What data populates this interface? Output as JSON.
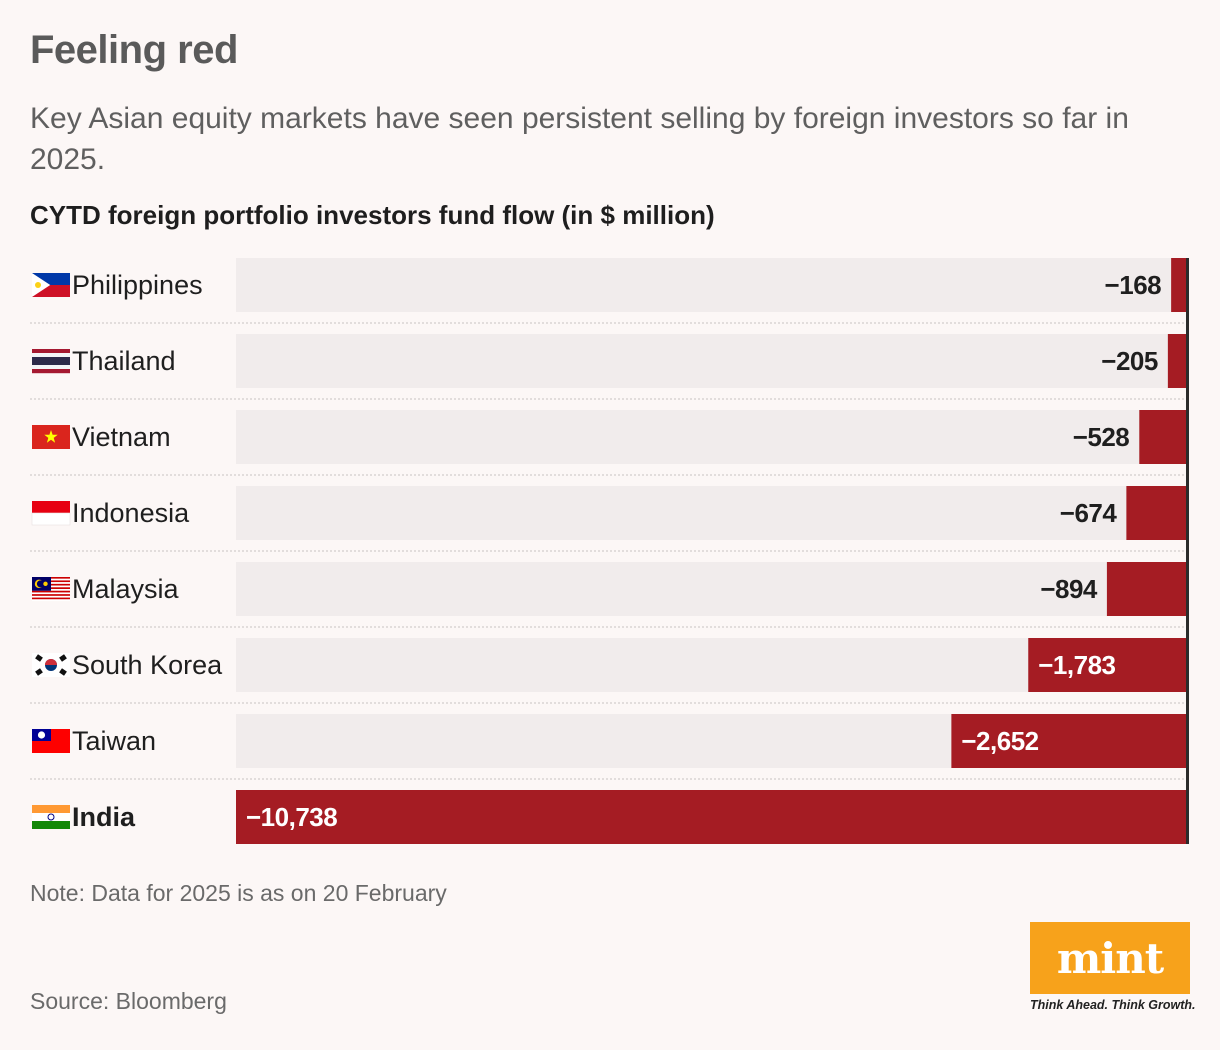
{
  "header": {
    "title": "Feeling red",
    "subtitle": "Key Asian equity markets have seen persistent selling by foreign investors so far in 2025.",
    "chart_heading": "CYTD foreign portfolio investors fund flow (in $ million)"
  },
  "footer": {
    "note": "Note: Data for 2025 is as on 20 February",
    "source": "Source: Bloomberg"
  },
  "logo": {
    "brand": "mint",
    "tagline": "Think Ahead. Think Growth."
  },
  "colors": {
    "bar": "#a51c23",
    "track": "#f1ecec",
    "background": "#fcf7f6",
    "logo": "#f7a21b"
  },
  "chart_data": {
    "type": "bar",
    "orientation": "horizontal",
    "title": "CYTD foreign portfolio investors fund flow (in $ million)",
    "xlim": [
      -10738,
      0
    ],
    "categories": [
      "Philippines",
      "Thailand",
      "Vietnam",
      "Indonesia",
      "Malaysia",
      "South Korea",
      "Taiwan",
      "India"
    ],
    "flags": [
      "philippines-flag-icon",
      "thailand-flag-icon",
      "vietnam-flag-icon",
      "indonesia-flag-icon",
      "malaysia-flag-icon",
      "south-korea-flag-icon",
      "taiwan-flag-icon",
      "india-flag-icon"
    ],
    "values": [
      -168,
      -205,
      -528,
      -674,
      -894,
      -1783,
      -2652,
      -10738
    ],
    "labels": [
      "−168",
      "−205",
      "−528",
      "−674",
      "−894",
      "−1,783",
      "−2,652",
      "−10,738"
    ],
    "highlight": "India"
  }
}
